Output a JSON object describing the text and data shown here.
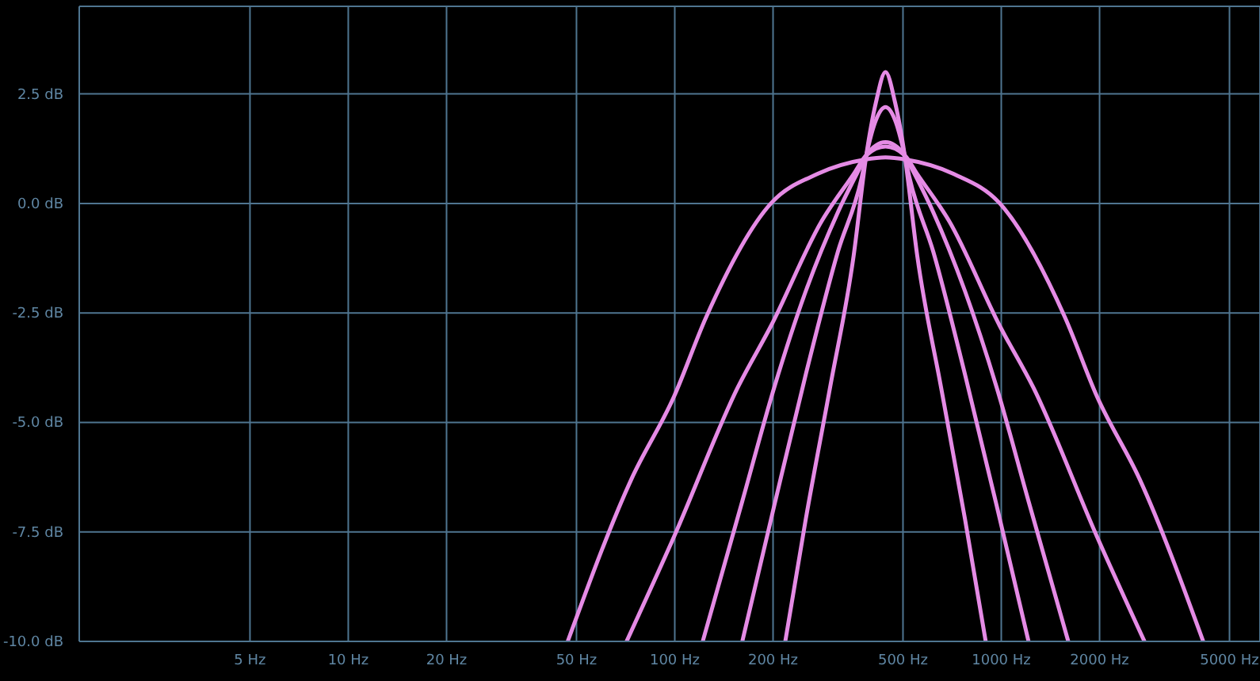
{
  "chart_data": {
    "type": "line",
    "log": "x",
    "grid": true,
    "marker": "none",
    "line_style": "solid",
    "xlim": [
      1.5,
      6200
    ],
    "ylim": [
      -10,
      4.5
    ],
    "xticks": [
      {
        "value": 5,
        "label": "5 Hz"
      },
      {
        "value": 10,
        "label": "10 Hz"
      },
      {
        "value": 20,
        "label": "20 Hz"
      },
      {
        "value": 50,
        "label": "50 Hz"
      },
      {
        "value": 100,
        "label": "100 Hz"
      },
      {
        "value": 200,
        "label": "200 Hz"
      },
      {
        "value": 500,
        "label": "500 Hz"
      },
      {
        "value": 1000,
        "label": "1000 Hz"
      },
      {
        "value": 2000,
        "label": "2000 Hz"
      },
      {
        "value": 5000,
        "label": "5000 Hz"
      }
    ],
    "yticks": [
      {
        "value": -10,
        "label": "-10.0 dB"
      },
      {
        "value": -7.5,
        "label": "-7.5 dB"
      },
      {
        "value": -5,
        "label": "-5.0 dB"
      },
      {
        "value": -2.5,
        "label": "-2.5 dB"
      },
      {
        "value": 0,
        "label": "0.0 dB"
      },
      {
        "value": 2.5,
        "label": "2.5 dB"
      }
    ],
    "series": [
      {
        "color": "#e58be5",
        "x": [
          47,
          73.6,
          99.6,
          124.7,
          197,
          273,
          382,
          442,
          511,
          716,
          990,
          1567,
          1962,
          2655,
          4155
        ],
        "values": [
          -10,
          -6.3,
          -4.4,
          -2.6,
          0,
          0.67,
          1.0,
          1.05,
          1.0,
          0.67,
          0,
          -2.6,
          -4.4,
          -6.3,
          -10
        ]
      },
      {
        "color": "#e58be5",
        "x": [
          71.2,
          99.6,
          156,
          197,
          282,
          353,
          386,
          442,
          506,
          553,
          692,
          990,
          1253,
          1962,
          2745
        ],
        "values": [
          -10,
          -7.6,
          -4.2,
          -2.8,
          -0.4,
          0.67,
          1.1,
          1.3,
          1.1,
          0.67,
          -0.4,
          -2.8,
          -4.2,
          -7.6,
          -10
        ]
      },
      {
        "color": "#e58be5",
        "x": [
          121.8,
          161,
          201.7,
          252,
          316,
          374,
          386,
          442,
          506,
          523,
          619,
          774,
          968,
          1212,
          1604
        ],
        "values": [
          -10,
          -6.8,
          -4.2,
          -2.0,
          -0.2,
          0.9,
          1.1,
          1.4,
          1.1,
          0.9,
          -0.2,
          -2.0,
          -4.2,
          -6.8,
          -10
        ]
      },
      {
        "color": "#e58be5",
        "x": [
          161,
          201.7,
          252,
          316,
          374,
          386,
          413,
          442,
          473,
          506,
          523,
          619,
          774,
          968,
          1212
        ],
        "values": [
          -10,
          -6.9,
          -3.9,
          -1.1,
          0.6,
          1.1,
          1.9,
          2.2,
          1.9,
          1.1,
          0.6,
          -1.1,
          -3.9,
          -6.9,
          -10
        ]
      },
      {
        "color": "#e58be5",
        "x": [
          218,
          252,
          299,
          353,
          386,
          413,
          442,
          473,
          506,
          553,
          654,
          774,
          896
        ],
        "values": [
          -10,
          -7.2,
          -4.2,
          -1.2,
          1.1,
          2.3,
          3.0,
          2.3,
          1.1,
          -1.2,
          -4.2,
          -7.2,
          -10
        ]
      }
    ]
  }
}
